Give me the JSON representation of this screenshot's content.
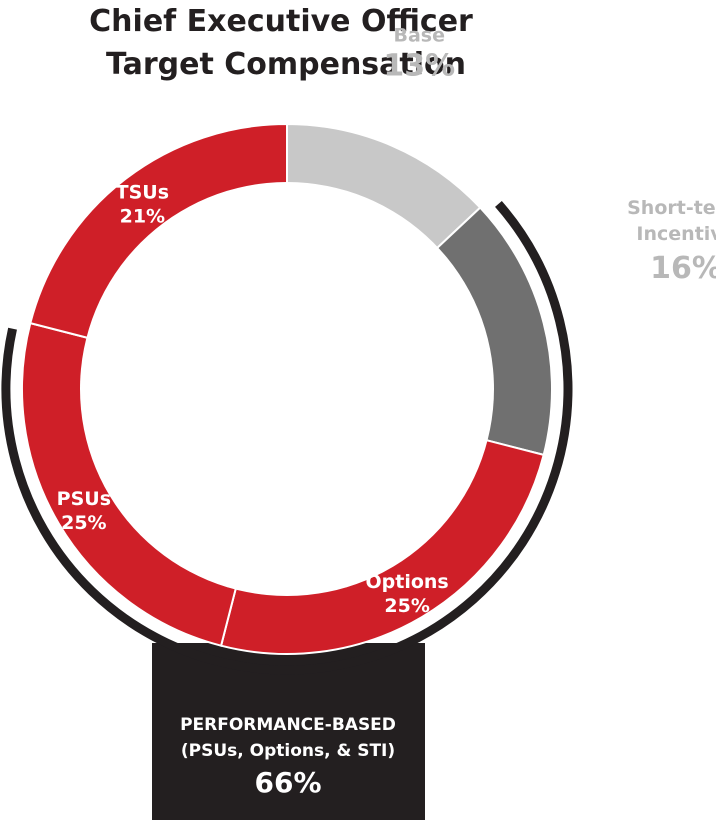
{
  "chart_data": {
    "type": "pie",
    "variant": "donut",
    "title": [
      "Chief Executive Officer",
      "Target Compensation"
    ],
    "slices": [
      {
        "name": "Base",
        "value": 13,
        "label": "13%",
        "color": "#c8c8c8",
        "label_position": "outside"
      },
      {
        "name": "Short-term Incentive",
        "name_lines": [
          "Short-term",
          "Incentive"
        ],
        "value": 16,
        "label": "16%",
        "color": "#707070",
        "label_position": "outside"
      },
      {
        "name": "Options",
        "value": 25,
        "label": "25%",
        "color": "#cf1f28",
        "label_position": "inside"
      },
      {
        "name": "PSUs",
        "value": 25,
        "label": "25%",
        "color": "#cf1f28",
        "label_position": "inside"
      },
      {
        "name": "TSUs",
        "value": 21,
        "label": "21%",
        "color": "#cf1f28",
        "label_position": "inside"
      }
    ],
    "callout": {
      "lines": [
        "PERFORMANCE-BASED",
        "(PSUs, Options, & STI)"
      ],
      "value": "66%",
      "covers": [
        "Short-term Incentive",
        "Options",
        "PSUs"
      ],
      "color": "#231f20"
    }
  }
}
